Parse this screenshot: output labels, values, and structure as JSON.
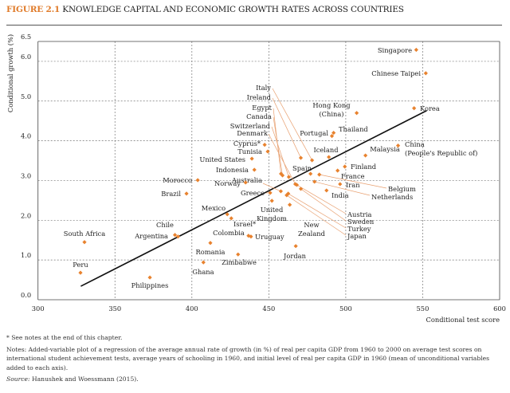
{
  "figure": {
    "label": "FIGURE 2.1",
    "title": "KNOWLEDGE CAPITAL AND ECONOMIC GROWTH RATES ACROSS COUNTRIES"
  },
  "chart_data": {
    "type": "scatter",
    "title": "Knowledge capital and economic growth rates across countries",
    "xlabel": "Conditional test score",
    "ylabel": "Conditional growth (%)",
    "xlim": [
      300,
      600
    ],
    "ylim": [
      0,
      6.5
    ],
    "xticks": [
      "300",
      "350",
      "400",
      "450",
      "500",
      "550",
      "600"
    ],
    "yticks": [
      "0.0",
      "1.0",
      "2.0",
      "3.0",
      "4.0",
      "5.0",
      "6.0",
      "6.5"
    ],
    "grid": true,
    "marker_color": "#e8822e",
    "fit_line": {
      "x": [
        327.8,
        552.6
      ],
      "y": [
        0.34,
        4.76
      ]
    },
    "points": [
      {
        "name": "Singapore",
        "x": 545.8,
        "y": 6.29
      },
      {
        "name": "Chinese Taipei",
        "x": 552.0,
        "y": 5.7
      },
      {
        "name": "Korea",
        "x": 544.4,
        "y": 4.82
      },
      {
        "name": "Hong Kong (China)",
        "x": 507.1,
        "y": 4.7
      },
      {
        "name": "Thailand",
        "x": 492.1,
        "y": 4.2
      },
      {
        "name": "Portugal",
        "x": 491.0,
        "y": 4.12
      },
      {
        "name": "China (People's Republic of)",
        "x": 534.0,
        "y": 3.88
      },
      {
        "name": "Malaysia",
        "x": 512.8,
        "y": 3.63
      },
      {
        "name": "Iceland",
        "x": 489.0,
        "y": 3.59
      },
      {
        "name": "Finland",
        "x": 499.4,
        "y": 3.35
      },
      {
        "name": "France",
        "x": 494.7,
        "y": 3.25
      },
      {
        "name": "Iran",
        "x": 496.3,
        "y": 2.91
      },
      {
        "name": "India",
        "x": 487.5,
        "y": 2.75
      },
      {
        "name": "Belgium",
        "x": 482.8,
        "y": 3.15
      },
      {
        "name": "Netherlands",
        "x": 479.7,
        "y": 2.97
      },
      {
        "name": "Spain",
        "x": 477.1,
        "y": 3.17
      },
      {
        "name": "Italy",
        "x": 478.1,
        "y": 3.51
      },
      {
        "name": "Ireland",
        "x": 470.8,
        "y": 3.57
      },
      {
        "name": "Egypt",
        "x": 457.9,
        "y": 3.17
      },
      {
        "name": "Canada",
        "x": 458.9,
        "y": 3.13
      },
      {
        "name": "Switzerland",
        "x": 463.0,
        "y": 3.09
      },
      {
        "name": "Denmark",
        "x": 467.2,
        "y": 2.91
      },
      {
        "name": "Austria",
        "x": 468.2,
        "y": 2.89
      },
      {
        "name": "Sweden",
        "x": 470.8,
        "y": 2.79
      },
      {
        "name": "Turkey",
        "x": 462.6,
        "y": 2.67
      },
      {
        "name": "Japan",
        "x": 461.6,
        "y": 2.63
      },
      {
        "name": "Australia",
        "x": 457.8,
        "y": 2.73
      },
      {
        "name": "New Zealand",
        "x": 463.6,
        "y": 2.39
      },
      {
        "name": "Greece",
        "x": 450.9,
        "y": 2.69
      },
      {
        "name": "United Kingdom",
        "x": 452.0,
        "y": 2.49
      },
      {
        "name": "Cyprus*",
        "x": 447.3,
        "y": 3.9
      },
      {
        "name": "Tunisia",
        "x": 449.3,
        "y": 3.73
      },
      {
        "name": "United States",
        "x": 439.0,
        "y": 3.55
      },
      {
        "name": "Indonesia",
        "x": 440.6,
        "y": 3.27
      },
      {
        "name": "Norway",
        "x": 434.9,
        "y": 2.95
      },
      {
        "name": "Morocco",
        "x": 403.8,
        "y": 3.01
      },
      {
        "name": "Brazil",
        "x": 396.5,
        "y": 2.67
      },
      {
        "name": "Mexico",
        "x": 423.0,
        "y": 2.15
      },
      {
        "name": "Israel*",
        "x": 425.6,
        "y": 2.05
      },
      {
        "name": "Colombia",
        "x": 436.8,
        "y": 1.61
      },
      {
        "name": "Uruguay",
        "x": 438.4,
        "y": 1.59
      },
      {
        "name": "Jordan",
        "x": 467.5,
        "y": 1.35
      },
      {
        "name": "Romania",
        "x": 412.0,
        "y": 1.43
      },
      {
        "name": "Zimbabwe",
        "x": 430.0,
        "y": 1.14
      },
      {
        "name": "Ghana",
        "x": 407.5,
        "y": 0.94
      },
      {
        "name": "Chile",
        "x": 389.0,
        "y": 1.63
      },
      {
        "name": "Argentina",
        "x": 391.0,
        "y": 1.59
      },
      {
        "name": "South Africa",
        "x": 330.2,
        "y": 1.45
      },
      {
        "name": "Peru",
        "x": 327.6,
        "y": 0.68
      },
      {
        "name": "Philippines",
        "x": 372.7,
        "y": 0.56
      }
    ]
  },
  "notes": {
    "asterisk": "* See notes at the end of this chapter.",
    "notes_text": "Notes: Added-variable plot of a regression of the average annual rate of growth (in %) of real per capita GDP from 1960 to 2000 on average test scores on international student achievement tests, average years of schooling in 1960, and initial level of real per capita GDP in 1960 (mean of unconditional variables added to each axis).",
    "source_label": "Source:",
    "source_text": " Hanushek and Woessmann (2015)."
  }
}
